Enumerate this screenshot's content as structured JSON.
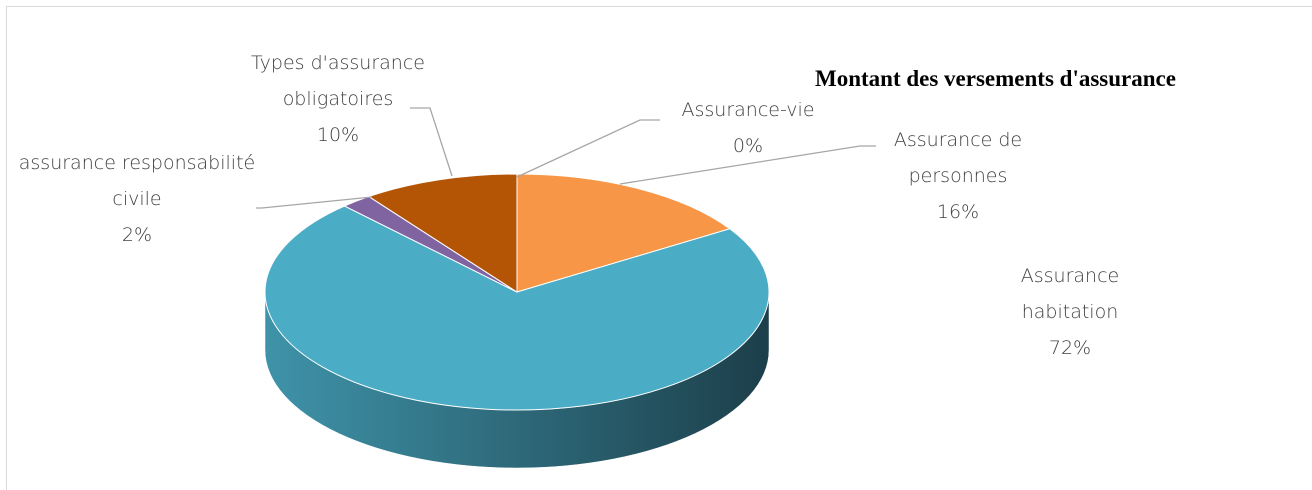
{
  "chart_data": {
    "type": "pie",
    "title": "Montant des versements d'assurance",
    "categories": [
      "Assurance-vie",
      "Assurance de personnes",
      "Assurance habitation",
      "assurance responsabilité civile",
      "Types d'assurance obligatoires"
    ],
    "values": [
      0,
      16,
      72,
      2,
      10
    ],
    "value_labels": [
      "0%",
      "16%",
      "72%",
      "2%",
      "10%"
    ],
    "colors": [
      "#4f81bd",
      "#f79646",
      "#4bacc6",
      "#8064a2",
      "#b35505"
    ]
  }
}
